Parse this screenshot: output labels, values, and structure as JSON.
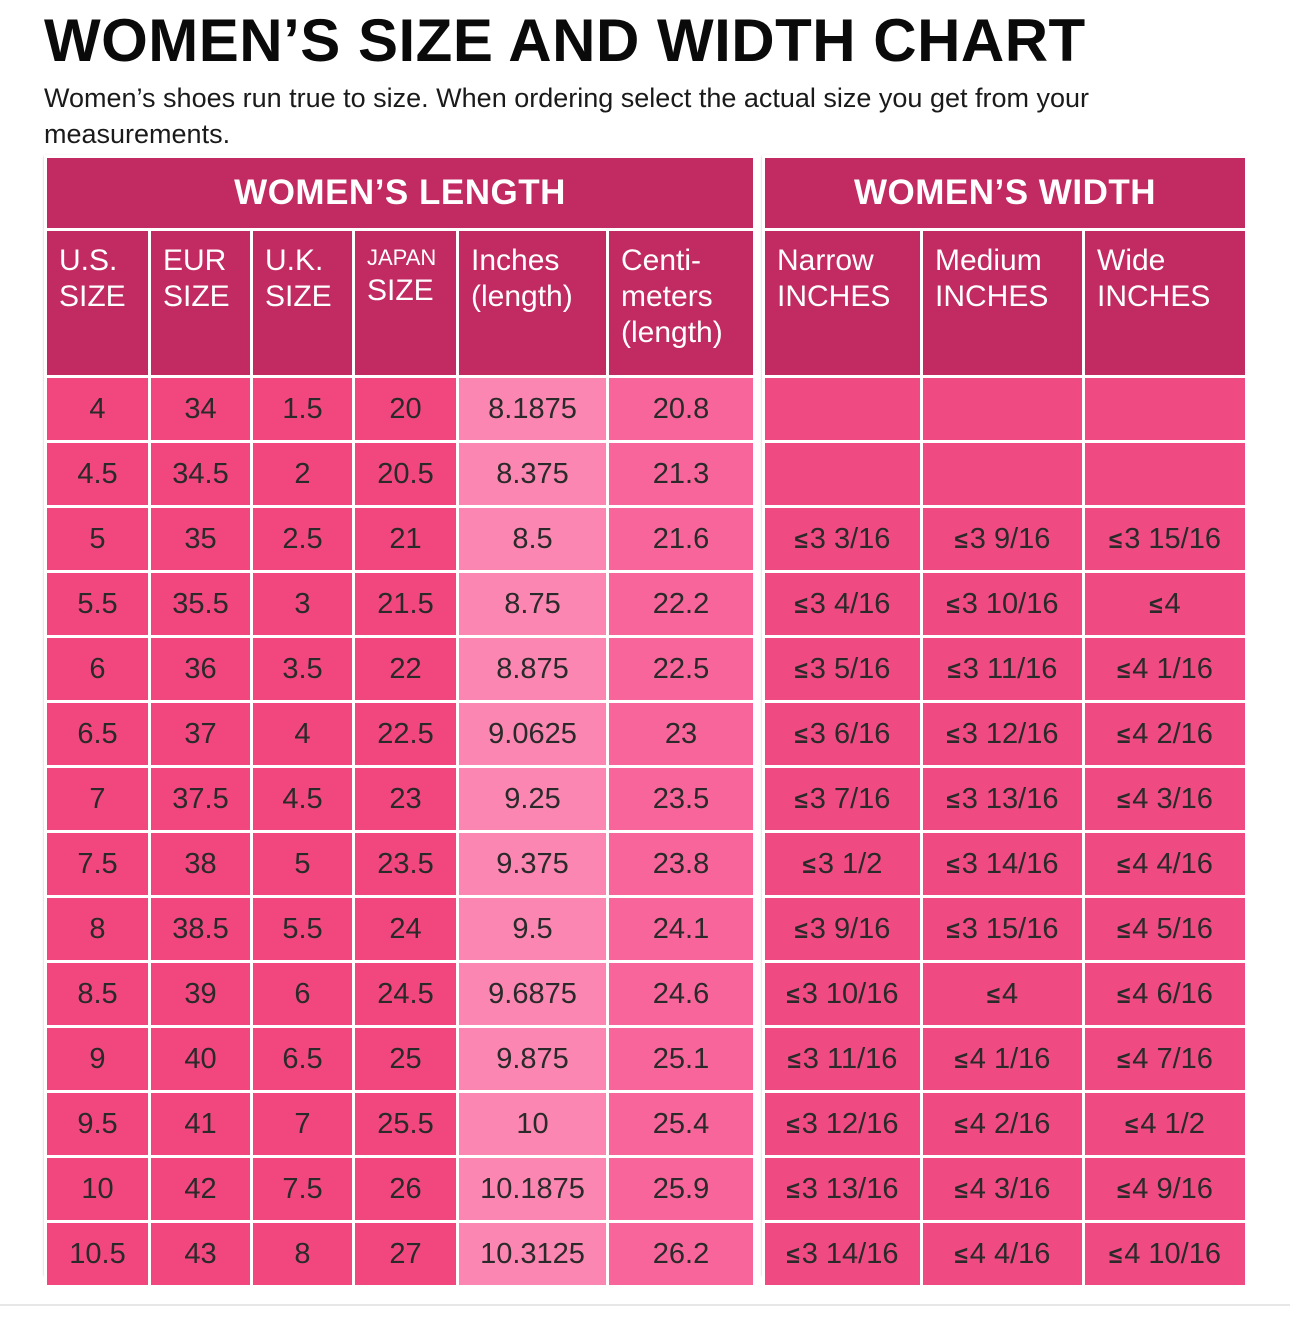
{
  "title": "WOMEN’S SIZE AND WIDTH CHART",
  "subtitle": "Women’s shoes run true to size.  When ordering select the actual size you get from your measurements.",
  "colors": {
    "header_bg": "#c22a62",
    "cell_dark": "#f2467f",
    "cell_mid": "#f7659a",
    "cell_light": "#fb86b1",
    "header_text": "#ffffff"
  },
  "length_section": {
    "heading": "WOMEN’S LENGTH",
    "columns": [
      [
        "U.S.",
        "SIZE"
      ],
      [
        "EUR",
        "SIZE"
      ],
      [
        "U.K.",
        "SIZE"
      ],
      [
        "JAPAN",
        "SIZE"
      ],
      [
        "Inches",
        "(length)"
      ],
      [
        "Centi-",
        "meters",
        "(length)"
      ]
    ]
  },
  "width_section": {
    "heading": "WOMEN’S WIDTH",
    "columns": [
      [
        "Narrow",
        "INCHES"
      ],
      [
        "Medium",
        "INCHES"
      ],
      [
        "Wide",
        "INCHES"
      ]
    ]
  },
  "le_symbol": "≤",
  "rows": [
    {
      "us": "4",
      "eur": "34",
      "uk": "1.5",
      "japan": "20",
      "inches": "8.1875",
      "cm": "20.8",
      "narrow": "",
      "medium": "",
      "wide": ""
    },
    {
      "us": "4.5",
      "eur": "34.5",
      "uk": "2",
      "japan": "20.5",
      "inches": "8.375",
      "cm": "21.3",
      "narrow": "",
      "medium": "",
      "wide": ""
    },
    {
      "us": "5",
      "eur": "35",
      "uk": "2.5",
      "japan": "21",
      "inches": "8.5",
      "cm": "21.6",
      "narrow": "3 3/16",
      "medium": "3 9/16",
      "wide": "3 15/16"
    },
    {
      "us": "5.5",
      "eur": "35.5",
      "uk": "3",
      "japan": "21.5",
      "inches": "8.75",
      "cm": "22.2",
      "narrow": "3 4/16",
      "medium": "3 10/16",
      "wide": "4"
    },
    {
      "us": "6",
      "eur": "36",
      "uk": "3.5",
      "japan": "22",
      "inches": "8.875",
      "cm": "22.5",
      "narrow": "3 5/16",
      "medium": "3 11/16",
      "wide": "4 1/16"
    },
    {
      "us": "6.5",
      "eur": "37",
      "uk": "4",
      "japan": "22.5",
      "inches": "9.0625",
      "cm": "23",
      "narrow": "3 6/16",
      "medium": "3 12/16",
      "wide": "4 2/16"
    },
    {
      "us": "7",
      "eur": "37.5",
      "uk": "4.5",
      "japan": "23",
      "inches": "9.25",
      "cm": "23.5",
      "narrow": "3 7/16",
      "medium": "3 13/16",
      "wide": "4 3/16"
    },
    {
      "us": "7.5",
      "eur": "38",
      "uk": "5",
      "japan": "23.5",
      "inches": "9.375",
      "cm": "23.8",
      "narrow": "3 1/2",
      "medium": "3 14/16",
      "wide": "4 4/16"
    },
    {
      "us": "8",
      "eur": "38.5",
      "uk": "5.5",
      "japan": "24",
      "inches": "9.5",
      "cm": "24.1",
      "narrow": "3 9/16",
      "medium": "3 15/16",
      "wide": "4 5/16"
    },
    {
      "us": "8.5",
      "eur": "39",
      "uk": "6",
      "japan": "24.5",
      "inches": "9.6875",
      "cm": "24.6",
      "narrow": "3 10/16",
      "medium": "4",
      "wide": "4 6/16"
    },
    {
      "us": "9",
      "eur": "40",
      "uk": "6.5",
      "japan": "25",
      "inches": "9.875",
      "cm": "25.1",
      "narrow": "3 11/16",
      "medium": "4 1/16",
      "wide": "4 7/16"
    },
    {
      "us": "9.5",
      "eur": "41",
      "uk": "7",
      "japan": "25.5",
      "inches": "10",
      "cm": "25.4",
      "narrow": "3 12/16",
      "medium": "4 2/16",
      "wide": "4 1/2"
    },
    {
      "us": "10",
      "eur": "42",
      "uk": "7.5",
      "japan": "26",
      "inches": "10.1875",
      "cm": "25.9",
      "narrow": "3 13/16",
      "medium": "4 3/16",
      "wide": "4 9/16"
    },
    {
      "us": "10.5",
      "eur": "43",
      "uk": "8",
      "japan": "27",
      "inches": "10.3125",
      "cm": "26.2",
      "narrow": "3 14/16",
      "medium": "4 4/16",
      "wide": "4 10/16"
    }
  ]
}
